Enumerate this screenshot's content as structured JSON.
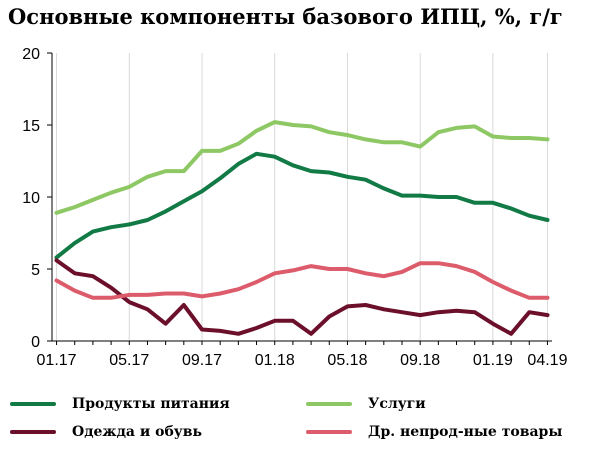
{
  "chart_data": {
    "type": "line",
    "title": "Основные компоненты базового ИПЦ, %, г/г",
    "xlabel": "",
    "ylabel": "",
    "ylim": [
      0,
      20
    ],
    "yticks": [
      "0",
      "5",
      "10",
      "15",
      "20"
    ],
    "xtick_labels": [
      "01.17",
      "05.17",
      "09.17",
      "01.18",
      "05.18",
      "09.18",
      "01.19",
      "04.19"
    ],
    "x": [
      "01.17",
      "02.17",
      "03.17",
      "04.17",
      "05.17",
      "06.17",
      "07.17",
      "08.17",
      "09.17",
      "10.17",
      "11.17",
      "12.17",
      "01.18",
      "02.18",
      "03.18",
      "04.18",
      "05.18",
      "06.18",
      "07.18",
      "08.18",
      "09.18",
      "10.18",
      "11.18",
      "12.18",
      "01.19",
      "02.19",
      "03.19",
      "04.19"
    ],
    "grid": "vertical",
    "legend_position": "bottom",
    "series": [
      {
        "name": "Продукты питания",
        "color": "#117a45",
        "values": [
          5.8,
          6.8,
          7.6,
          7.9,
          8.1,
          8.4,
          9.0,
          9.7,
          10.4,
          11.3,
          12.3,
          13.0,
          12.8,
          12.2,
          11.8,
          11.7,
          11.4,
          11.2,
          10.6,
          10.1,
          10.1,
          10.0,
          10.0,
          9.6,
          9.6,
          9.2,
          8.7,
          8.4
        ]
      },
      {
        "name": "Услуги",
        "color": "#8ec864",
        "values": [
          8.9,
          9.3,
          9.8,
          10.3,
          10.7,
          11.4,
          11.8,
          11.8,
          13.2,
          13.2,
          13.7,
          14.6,
          15.2,
          15.0,
          14.9,
          14.5,
          14.3,
          14.0,
          13.8,
          13.8,
          13.5,
          14.5,
          14.8,
          14.9,
          14.2,
          14.1,
          14.1,
          14.0
        ]
      },
      {
        "name": "Одежда и обувь",
        "color": "#6b0f2b",
        "values": [
          5.6,
          4.7,
          4.5,
          3.7,
          2.7,
          2.2,
          1.2,
          2.5,
          0.8,
          0.7,
          0.5,
          0.9,
          1.4,
          1.4,
          0.5,
          1.7,
          2.4,
          2.5,
          2.2,
          2.0,
          1.8,
          2.0,
          2.1,
          2.0,
          1.2,
          0.5,
          2.0,
          1.8
        ]
      },
      {
        "name": "Др. непрод-ные товары",
        "color": "#dd5c6b",
        "values": [
          4.2,
          3.5,
          3.0,
          3.0,
          3.2,
          3.2,
          3.3,
          3.3,
          3.1,
          3.3,
          3.6,
          4.1,
          4.7,
          4.9,
          5.2,
          5.0,
          5.0,
          4.7,
          4.5,
          4.8,
          5.4,
          5.4,
          5.2,
          4.8,
          4.1,
          3.5,
          3.0,
          3.0
        ]
      }
    ]
  }
}
